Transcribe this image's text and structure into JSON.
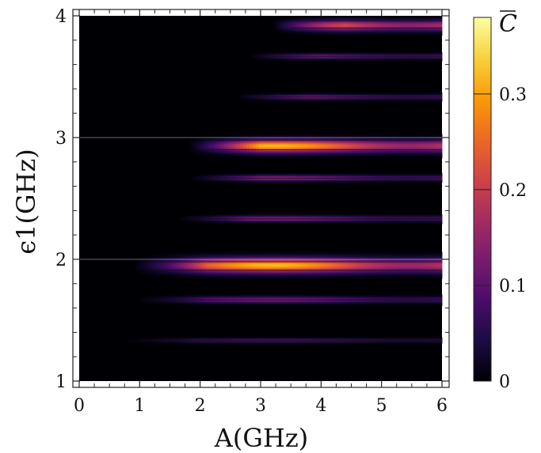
{
  "chart_data": {
    "type": "heatmap",
    "title": "",
    "xlabel": "A(GHz)",
    "ylabel": "ϵ1(GHz)",
    "xlim": [
      0,
      6
    ],
    "ylim": [
      1,
      4
    ],
    "x_ticks": [
      0,
      1,
      2,
      3,
      4,
      5,
      6
    ],
    "x_tick_labels": [
      "0",
      "1",
      "2",
      "3",
      "4",
      "5",
      "6"
    ],
    "y_ticks": [
      1,
      2,
      3,
      4
    ],
    "y_tick_labels": [
      "1",
      "2",
      "3",
      "4"
    ],
    "grid_lines_y": [
      2,
      3
    ],
    "colorbar": {
      "title": "C",
      "title_overline": true,
      "range": [
        0,
        0.38
      ],
      "ticks": [
        0,
        0.1,
        0.2,
        0.3
      ],
      "tick_labels": [
        "0",
        "0.1",
        "0.2",
        "0.3"
      ],
      "colormap": "inferno",
      "colors": [
        "#000004",
        "#1b0c41",
        "#4a0c6b",
        "#781c6d",
        "#a52c60",
        "#cf4446",
        "#ed6925",
        "#fb9b06",
        "#f7d13d",
        "#fcffa4"
      ]
    },
    "resonance_bands": [
      {
        "eps": 1.333,
        "a_start": 0.7,
        "peak": 0.09,
        "width": 0.012,
        "thin_lines": [
          1.333
        ]
      },
      {
        "eps": 1.667,
        "a_start": 0.9,
        "peak": 0.13,
        "width": 0.018,
        "thin_lines": [
          1.667
        ]
      },
      {
        "eps": 1.95,
        "a_start": 0.9,
        "peak": 0.32,
        "width": 0.04,
        "thin_lines": [
          1.91,
          1.98
        ]
      },
      {
        "eps": 2.333,
        "a_start": 1.6,
        "peak": 0.14,
        "width": 0.016,
        "thin_lines": [
          2.333
        ]
      },
      {
        "eps": 2.667,
        "a_start": 1.8,
        "peak": 0.15,
        "width": 0.016,
        "thin_lines": [
          2.667
        ]
      },
      {
        "eps": 2.93,
        "a_start": 1.8,
        "peak": 0.32,
        "width": 0.035,
        "thin_lines": [
          2.9,
          2.98
        ]
      },
      {
        "eps": 3.333,
        "a_start": 2.6,
        "peak": 0.14,
        "width": 0.014,
        "thin_lines": [
          3.333
        ]
      },
      {
        "eps": 3.667,
        "a_start": 2.8,
        "peak": 0.15,
        "width": 0.014,
        "thin_lines": [
          3.667
        ]
      },
      {
        "eps": 3.92,
        "a_start": 3.2,
        "peak": 0.3,
        "width": 0.03,
        "thin_lines": [
          3.9,
          3.96
        ]
      }
    ]
  }
}
